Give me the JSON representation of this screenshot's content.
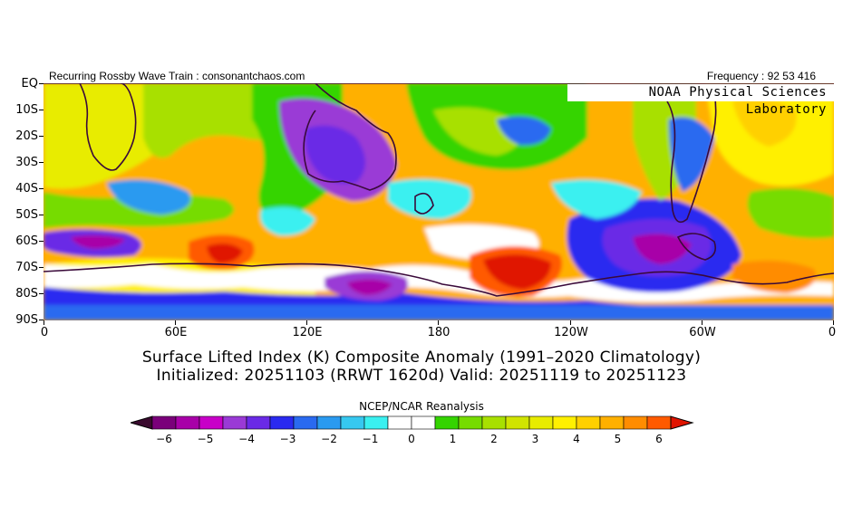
{
  "header": {
    "left": "Recurring Rossby Wave Train : consonantchaos.com",
    "right": "Frequency : 92 53 416",
    "lab": "NOAA Physical Sciences Laboratory"
  },
  "axes": {
    "y_labels": [
      "EQ",
      "10S",
      "20S",
      "30S",
      "40S",
      "50S",
      "60S",
      "70S",
      "80S",
      "90S"
    ],
    "x_labels": [
      "0",
      "60E",
      "120E",
      "180",
      "120W",
      "60W",
      "0"
    ]
  },
  "titles": {
    "line1": "Surface Lifted Index (K) Composite Anomaly (1991–2020 Climatology)",
    "line2": "Initialized: 20251103 (RRWT 1620d) Valid: 20251119 to 20251123"
  },
  "colorbar": {
    "title": "NCEP/NCAR Reanalysis",
    "labels": [
      "−6",
      "−5",
      "−4",
      "−3",
      "−2",
      "−1",
      "0",
      "1",
      "2",
      "3",
      "4",
      "5",
      "6"
    ],
    "colors": [
      "#3a0a2e",
      "#7a007a",
      "#a800a8",
      "#c800c8",
      "#9a3ad6",
      "#6a2ae6",
      "#2a2af0",
      "#2a6af0",
      "#2a9af0",
      "#36c8f0",
      "#3af0f0",
      "#ffffff",
      "#ffffff",
      "#34d400",
      "#76dc00",
      "#a8e000",
      "#d0e400",
      "#e8ec00",
      "#fff000",
      "#ffd000",
      "#ffb000",
      "#ff8c00",
      "#ff5a00",
      "#e01400"
    ],
    "min_value": -6,
    "max_value": 6
  },
  "map": {
    "projection": "cylindrical equidistant",
    "lat_range": [
      -90,
      0
    ],
    "lon_range": [
      0,
      360
    ]
  }
}
